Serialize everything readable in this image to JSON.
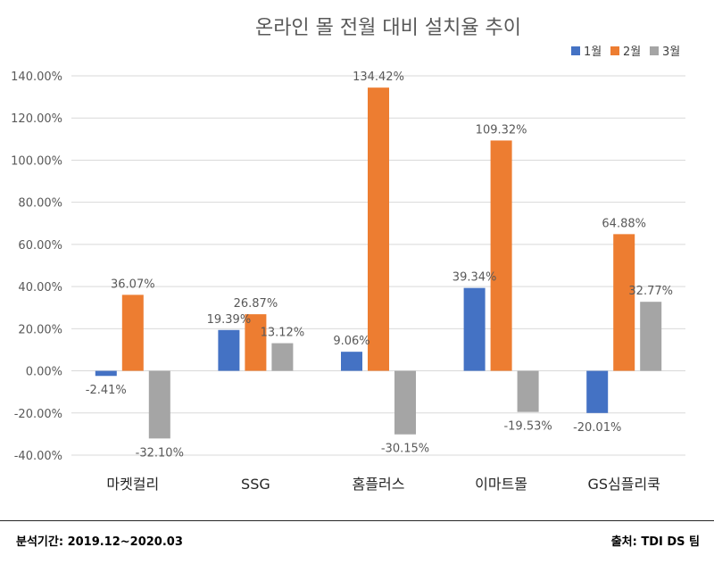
{
  "chart_data": {
    "type": "bar",
    "title": "온라인 몰 전월 대비 설치율 추이",
    "categories": [
      "마켓컬리",
      "SSG",
      "홈플러스",
      "이마트몰",
      "GS심플리쿡"
    ],
    "series": [
      {
        "name": "1월",
        "color": "#4472C4",
        "values": [
          -2.41,
          19.39,
          9.06,
          39.34,
          -20.01
        ],
        "labels": [
          "-2.41%",
          "19.39%",
          "9.06%",
          "39.34%",
          "-20.01%"
        ]
      },
      {
        "name": "2월",
        "color": "#ED7D31",
        "values": [
          36.07,
          26.87,
          134.42,
          109.32,
          64.88
        ],
        "labels": [
          "36.07%",
          "26.87%",
          "134.42%",
          "109.32%",
          "64.88%"
        ]
      },
      {
        "name": "3월",
        "color": "#A5A5A5",
        "values": [
          -32.1,
          13.12,
          -30.15,
          -19.53,
          32.77
        ],
        "labels": [
          "-32.10%",
          "13.12%",
          "-30.15%",
          "-19.53%",
          "32.77%"
        ]
      }
    ],
    "ylim": [
      -40,
      140
    ],
    "yticks": [
      -40,
      -20,
      0,
      20,
      40,
      60,
      80,
      100,
      120,
      140
    ],
    "ytick_labels": [
      "-40.00%",
      "-20.00%",
      "0.00%",
      "20.00%",
      "40.00%",
      "60.00%",
      "80.00%",
      "100.00%",
      "120.00%",
      "140.00%"
    ],
    "grid": true,
    "legend_position": "top-right"
  },
  "footer": {
    "left": "분석기간: 2019.12~2020.03",
    "right": "출처: TDI DS 팀"
  }
}
